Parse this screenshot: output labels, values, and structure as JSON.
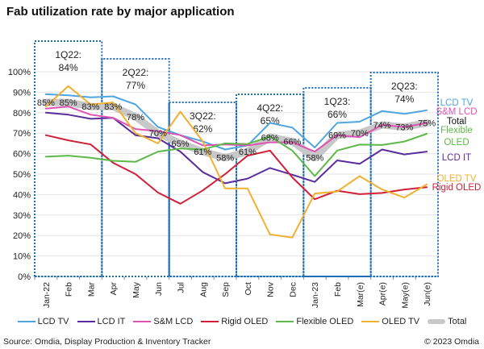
{
  "chart_data": {
    "type": "line",
    "title": "Fab utilization rate by major application",
    "categories": [
      "Jan-22",
      "Feb",
      "Mar",
      "Apr",
      "May",
      "Jun",
      "Jul",
      "Aug",
      "Sep",
      "Oct",
      "Nov",
      "Dec",
      "Jan-23",
      "Feb",
      "Mar(e)",
      "Apr(e)",
      "May(e)",
      "Jun(e)"
    ],
    "ylim": [
      0,
      100
    ],
    "yticks": [
      "0%",
      "10%",
      "20%",
      "30%",
      "40%",
      "50%",
      "60%",
      "70%",
      "80%",
      "90%",
      "100%"
    ],
    "grid": true,
    "legend_placement": "bottom",
    "series": [
      {
        "name": "LCD TV",
        "color": "#4ea6e0",
        "values": [
          89,
          88.5,
          87.5,
          88,
          84,
          73,
          69,
          66,
          62,
          64,
          75,
          72.7,
          63,
          75,
          75.6,
          80.8,
          79.4,
          81.2
        ]
      },
      {
        "name": "LCD IT",
        "color": "#5b2c9e",
        "values": [
          80,
          79,
          77,
          77.5,
          69,
          67.5,
          61,
          51,
          45.5,
          47.8,
          53,
          49.7,
          46.2,
          56.7,
          55,
          62,
          59.6,
          61
        ]
      },
      {
        "name": "S&M LCD",
        "color": "#e052b4",
        "values": [
          82,
          83,
          79,
          77.5,
          72,
          71,
          69,
          64,
          64.5,
          64,
          65.5,
          65.5,
          61,
          69,
          68,
          74,
          73,
          75
        ]
      },
      {
        "name": "Rigid OLED",
        "color": "#d01f36",
        "values": [
          69,
          66.5,
          64.5,
          55.5,
          50,
          41,
          35.5,
          42,
          50,
          59,
          61.5,
          48.4,
          37.7,
          41.9,
          40.2,
          40.8,
          42.5,
          43.6
        ]
      },
      {
        "name": "Flexible OLED",
        "color": "#5cb947",
        "values": [
          58.5,
          59,
          58,
          56.5,
          56,
          61,
          62.5,
          62,
          65,
          64.7,
          68.4,
          61.5,
          49,
          61.5,
          64.4,
          64.2,
          65.9,
          69.7
        ]
      },
      {
        "name": "OLED TV",
        "color": "#f0b030",
        "values": [
          83,
          93,
          84,
          85,
          70,
          65,
          80.5,
          66,
          43,
          43,
          20.5,
          19,
          40.5,
          41.5,
          49,
          42.5,
          38.5,
          45
        ]
      },
      {
        "name": "Total",
        "color": "#c8c8c8",
        "values": [
          85,
          85,
          83,
          83,
          78,
          70,
          65,
          61,
          58,
          61,
          68,
          66,
          58,
          69,
          70,
          74,
          73,
          75
        ],
        "data_labels": [
          "85%",
          "85%",
          "83%",
          "83%",
          "78%",
          "70%",
          "65%",
          "61%",
          "58%",
          "61%",
          "68%",
          "66%",
          "58%",
          "69%",
          "70%",
          "74%",
          "73%",
          "75%"
        ]
      }
    ],
    "quarter_annotations": [
      {
        "label": "1Q22:",
        "value": "84%",
        "value_num": 84,
        "start": 0,
        "end": 2
      },
      {
        "label": "2Q22:",
        "value": "77%",
        "value_num": 77,
        "start": 3,
        "end": 5
      },
      {
        "label": "3Q22:",
        "value": "62%",
        "value_num": 62,
        "start": 6,
        "end": 8
      },
      {
        "label": "4Q22:",
        "value": "65%",
        "value_num": 65,
        "start": 9,
        "end": 11
      },
      {
        "label": "1Q23:",
        "value": "66%",
        "value_num": 66,
        "start": 12,
        "end": 14
      },
      {
        "label": "2Q23:",
        "value": "74%",
        "value_num": 74,
        "start": 15,
        "end": 17
      }
    ],
    "end_labels": [
      {
        "text": "LCD TV",
        "color": "#4ea6e0"
      },
      {
        "text": "S&M LCD",
        "color": "#e052b4"
      },
      {
        "text": "Total",
        "color": "#111111"
      },
      {
        "text": "Flexible",
        "color": "#5cb947"
      },
      {
        "text": "OLED",
        "color": "#5cb947"
      },
      {
        "text": "LCD IT",
        "color": "#5b2c9e"
      },
      {
        "text": "OLED TV",
        "color": "#f0b030"
      },
      {
        "text": "Rigid OLED",
        "color": "#d01f36"
      }
    ]
  },
  "footer": {
    "source": "Source: Omdia, Display Production & Inventory Tracker",
    "copyright": "© 2023 Omdia"
  }
}
